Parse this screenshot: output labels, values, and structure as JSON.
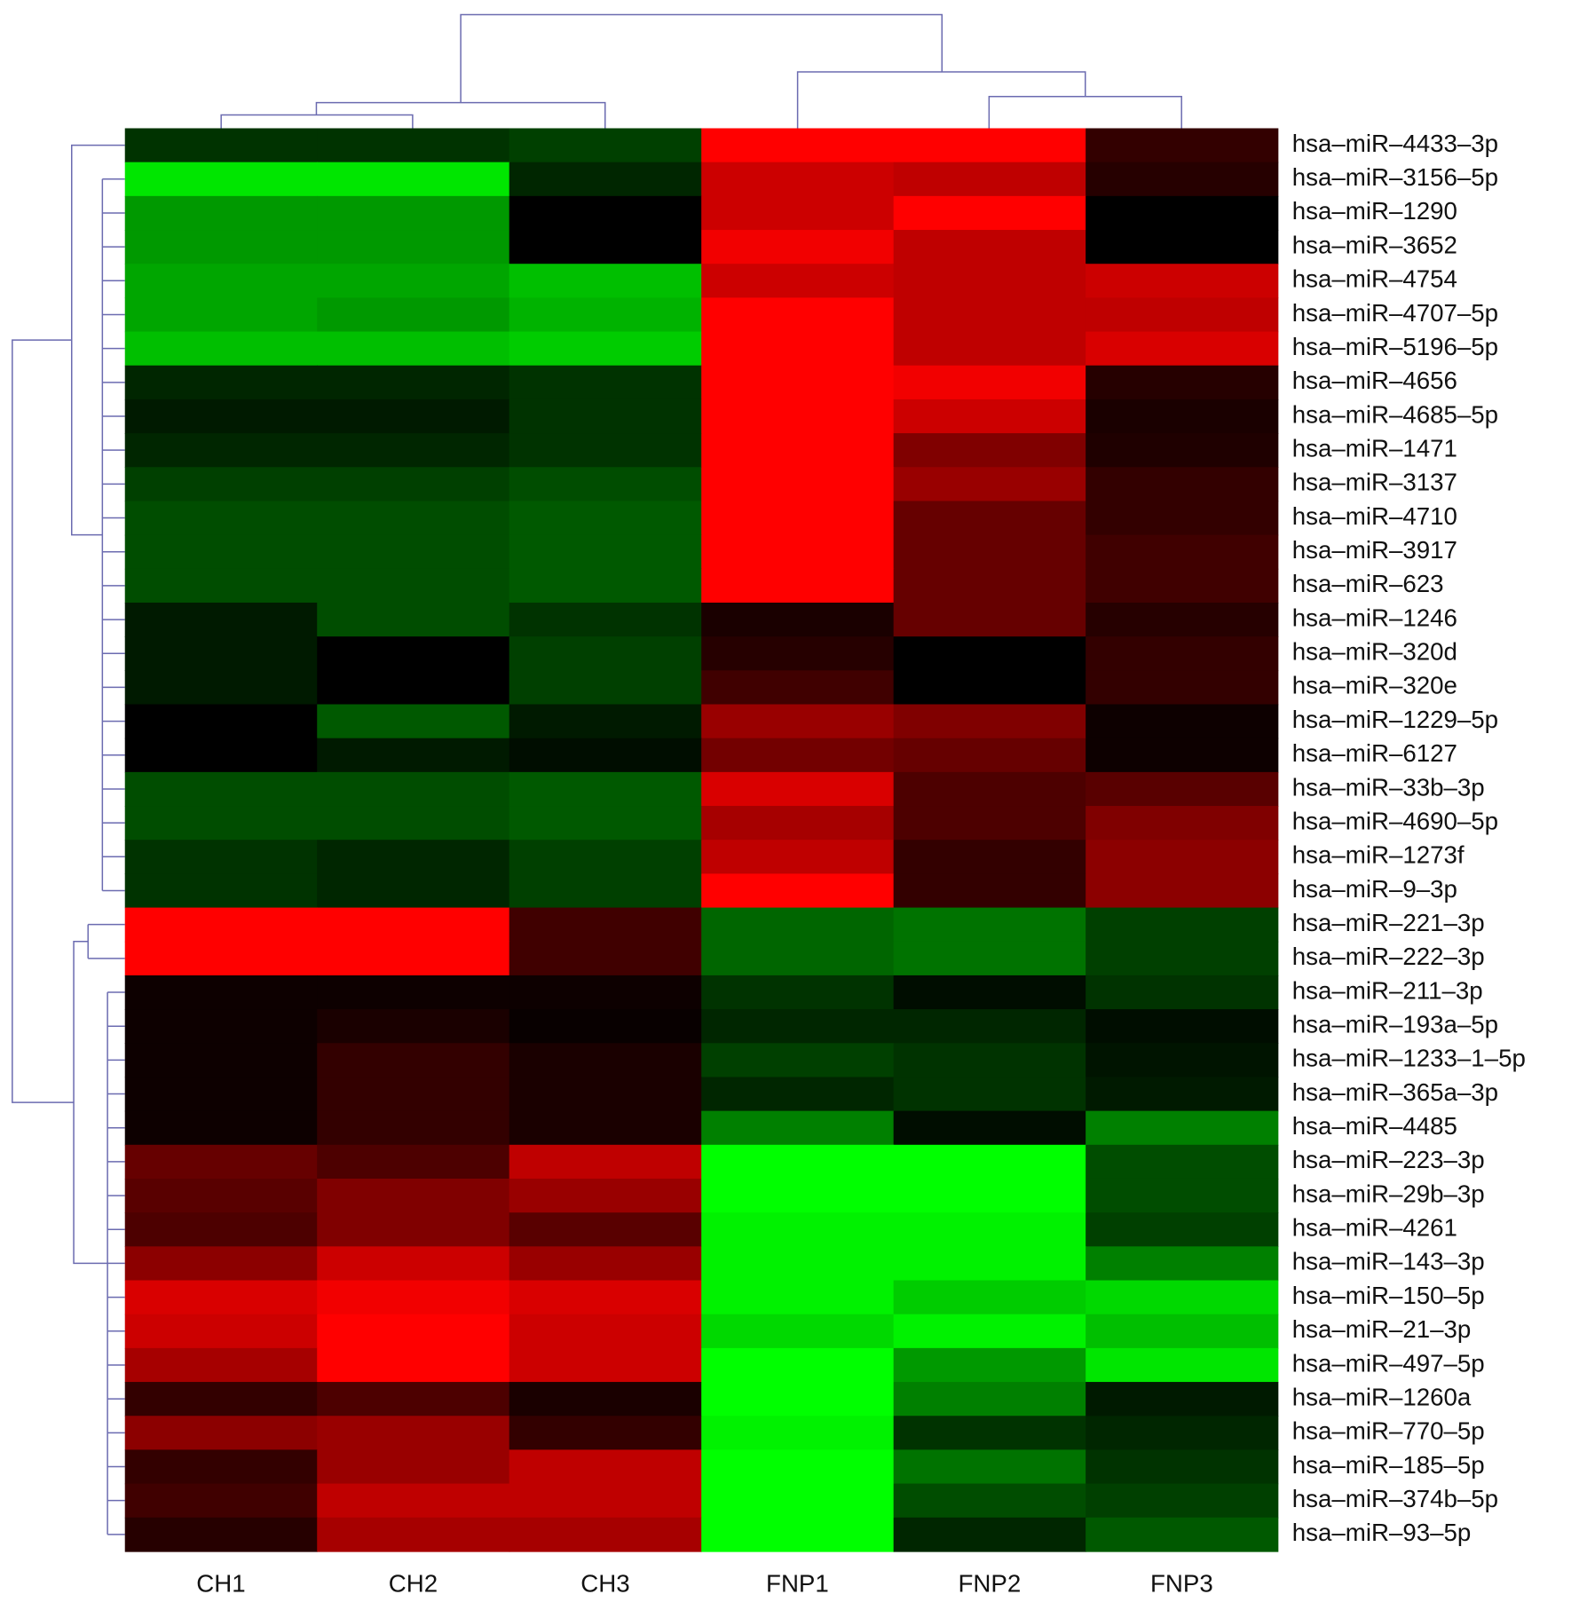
{
  "chart_data": {
    "type": "heatmap",
    "columns": [
      "CH1",
      "CH2",
      "CH3",
      "FNP1",
      "FNP2",
      "FNP3"
    ],
    "rows": [
      "hsa–miR–4433–3p",
      "hsa–miR–3156–5p",
      "hsa–miR–1290",
      "hsa–miR–3652",
      "hsa–miR–4754",
      "hsa–miR–4707–5p",
      "hsa–miR–5196–5p",
      "hsa–miR–4656",
      "hsa–miR–4685–5p",
      "hsa–miR–1471",
      "hsa–miR–3137",
      "hsa–miR–4710",
      "hsa–miR–3917",
      "hsa–miR–623",
      "hsa–miR–1246",
      "hsa–miR–320d",
      "hsa–miR–320e",
      "hsa–miR–1229–5p",
      "hsa–miR–6127",
      "hsa–miR–33b–3p",
      "hsa–miR–4690–5p",
      "hsa–miR–1273f",
      "hsa–miR–9–3p",
      "hsa–miR–221–3p",
      "hsa–miR–222–3p",
      "hsa–miR–211–3p",
      "hsa–miR–193a–5p",
      "hsa–miR–1233–1–5p",
      "hsa–miR–365a–3p",
      "hsa–miR–4485",
      "hsa–miR–223–3p",
      "hsa–miR–29b–3p",
      "hsa–miR–4261",
      "hsa–miR–143–3p",
      "hsa–miR–150–5p",
      "hsa–miR–21–3p",
      "hsa–miR–497–5p",
      "hsa–miR–1260a",
      "hsa–miR–770–5p",
      "hsa–miR–185–5p",
      "hsa–miR–374b–5p",
      "hsa–miR–93–5p"
    ],
    "values": [
      [
        -0.2,
        -0.2,
        -0.25,
        1,
        1,
        0.2
      ],
      [
        -0.9,
        -0.9,
        -0.15,
        0.8,
        0.75,
        0.15
      ],
      [
        -0.6,
        -0.6,
        0,
        0.8,
        1,
        0
      ],
      [
        -0.6,
        -0.6,
        0,
        0.95,
        0.75,
        0
      ],
      [
        -0.65,
        -0.65,
        -0.75,
        0.8,
        0.75,
        0.8
      ],
      [
        -0.65,
        -0.6,
        -0.7,
        1,
        0.75,
        0.75
      ],
      [
        -0.75,
        -0.75,
        -0.8,
        1,
        0.75,
        0.85
      ],
      [
        -0.15,
        -0.15,
        -0.2,
        1,
        0.95,
        0.15
      ],
      [
        -0.1,
        -0.1,
        -0.2,
        1,
        0.8,
        0.1
      ],
      [
        -0.15,
        -0.15,
        -0.2,
        1,
        0.5,
        0.12
      ],
      [
        -0.25,
        -0.25,
        -0.3,
        1,
        0.6,
        0.2
      ],
      [
        -0.3,
        -0.3,
        -0.35,
        1,
        0.4,
        0.2
      ],
      [
        -0.3,
        -0.3,
        -0.35,
        1,
        0.4,
        0.25
      ],
      [
        -0.3,
        -0.3,
        -0.35,
        1,
        0.4,
        0.25
      ],
      [
        -0.1,
        -0.3,
        -0.2,
        0.1,
        0.4,
        0.15
      ],
      [
        -0.1,
        0,
        -0.25,
        0.15,
        0,
        0.2
      ],
      [
        -0.1,
        0,
        -0.25,
        0.25,
        0,
        0.2
      ],
      [
        0,
        -0.35,
        -0.1,
        0.6,
        0.5,
        0.05
      ],
      [
        0,
        -0.1,
        -0.05,
        0.45,
        0.4,
        0.05
      ],
      [
        -0.3,
        -0.3,
        -0.35,
        0.85,
        0.3,
        0.35
      ],
      [
        -0.3,
        -0.3,
        -0.35,
        0.65,
        0.3,
        0.5
      ],
      [
        -0.2,
        -0.15,
        -0.25,
        0.75,
        0.2,
        0.55
      ],
      [
        -0.2,
        -0.15,
        -0.25,
        1,
        0.2,
        0.55
      ],
      [
        1,
        1,
        0.25,
        -0.4,
        -0.45,
        -0.25
      ],
      [
        1,
        1,
        0.25,
        -0.4,
        -0.45,
        -0.25
      ],
      [
        0.05,
        0.05,
        0.05,
        -0.2,
        -0.05,
        -0.2
      ],
      [
        0.05,
        0.1,
        0.03,
        -0.15,
        -0.15,
        -0.05
      ],
      [
        0.05,
        0.2,
        0.1,
        -0.25,
        -0.2,
        -0.08
      ],
      [
        0.05,
        0.2,
        0.1,
        -0.15,
        -0.2,
        -0.1
      ],
      [
        0.05,
        0.2,
        0.1,
        -0.5,
        -0.05,
        -0.5
      ],
      [
        0.4,
        0.3,
        0.75,
        -1,
        -1,
        -0.3
      ],
      [
        0.35,
        0.5,
        0.6,
        -1,
        -1,
        -0.3
      ],
      [
        0.3,
        0.5,
        0.35,
        -0.95,
        -0.95,
        -0.25
      ],
      [
        0.55,
        0.8,
        0.6,
        -0.95,
        -0.95,
        -0.5
      ],
      [
        0.85,
        0.95,
        0.85,
        -0.95,
        -0.8,
        -0.85
      ],
      [
        0.8,
        1,
        0.8,
        -0.85,
        -0.95,
        -0.75
      ],
      [
        0.65,
        1,
        0.8,
        -1,
        -0.6,
        -0.9
      ],
      [
        0.2,
        0.3,
        0.1,
        -1,
        -0.5,
        -0.1
      ],
      [
        0.55,
        0.6,
        0.2,
        -0.95,
        -0.2,
        -0.15
      ],
      [
        0.2,
        0.6,
        0.75,
        -1,
        -0.45,
        -0.2
      ],
      [
        0.25,
        0.75,
        0.75,
        -1,
        -0.3,
        -0.25
      ],
      [
        0.15,
        0.65,
        0.65,
        -1,
        -0.15,
        -0.35
      ]
    ],
    "zlim": [
      -1,
      1
    ],
    "colors": {
      "low": "#00ff00",
      "mid": "#000000",
      "high": "#ff0000"
    }
  }
}
